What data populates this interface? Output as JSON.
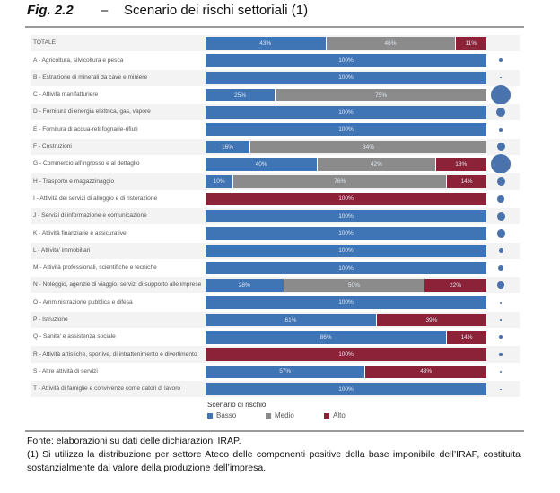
{
  "header": {
    "fig": "Fig. 2.2",
    "dash": "–",
    "title": "Scenario dei rischi settoriali (1)"
  },
  "colors": {
    "Basso": "#3f74b5",
    "Medio": "#8b8b8b",
    "Alto": "#8c2237",
    "bubble": "#4a72ad"
  },
  "chart_data": {
    "type": "bar",
    "orientation": "horizontal-stacked-100",
    "series_names": [
      "Basso",
      "Medio",
      "Alto"
    ],
    "categories": [
      "TOTALE",
      "A - Agricoltura, silvicoltura e pesca",
      "B - Estrazione di minerali da cave e miniere",
      "C - Attività manifatturiere",
      "D - Fornitura di energia elettrica, gas, vapore",
      "E - Fornitura di acqua-reti fognarie-rifiuti",
      "F - Costruzioni",
      "G - Commercio all'ingrosso e al dettaglio",
      "H - Trasporto e magazzinaggio",
      "I - Attività dei servizi di alloggio e di ristorazione",
      "J - Servizi di informazione e comunicazione",
      "K - Attività finanziarie e assicurative",
      "L - Attivita' immobiliari",
      "M - Attività professionali, scientifiche e tecniche",
      "N - Noleggio, agenzie di viaggio, servizi di supporto alle imprese",
      "O - Amministrazione pubblica e difesa",
      "P - Istruzione",
      "Q - Sanita' e assistenza sociale",
      "R - Attività artistiche, sportive, di intrattenimento e divertimento",
      "S - Altre attività di servizi",
      "T - Attività di famiglie e convivenze come datori di lavoro"
    ],
    "series": [
      {
        "name": "Basso",
        "values": [
          43,
          100,
          100,
          25,
          100,
          100,
          16,
          40,
          10,
          0,
          100,
          100,
          100,
          100,
          28,
          100,
          61,
          86,
          0,
          57,
          100
        ]
      },
      {
        "name": "Medio",
        "values": [
          46,
          0,
          0,
          75,
          0,
          0,
          84,
          42,
          76,
          0,
          0,
          0,
          0,
          0,
          50,
          0,
          0,
          0,
          0,
          0,
          0
        ]
      },
      {
        "name": "Alto",
        "values": [
          11,
          0,
          0,
          0,
          0,
          0,
          0,
          18,
          14,
          100,
          0,
          0,
          0,
          0,
          22,
          0,
          39,
          14,
          100,
          43,
          0
        ]
      }
    ],
    "bubble_relative_size": [
      0,
      2,
      0.5,
      11,
      5,
      2,
      4.5,
      11,
      4.5,
      4,
      4.5,
      4.5,
      2.5,
      3,
      4,
      1,
      0.8,
      2,
      1.8,
      1.3,
      0.3
    ],
    "legend_title": "Scenario di rischio",
    "legend_placement": "bottom",
    "xlim": [
      0,
      100
    ]
  },
  "footer": {
    "source": "Fonte: elaborazioni su dati delle dichiarazioni IRAP.",
    "note": "(1) Si utilizza la distribuzione per settore Ateco delle componenti positive della base imponibile dell’IRAP, costituita sostanzialmente dal valore della produzione dell’impresa."
  }
}
